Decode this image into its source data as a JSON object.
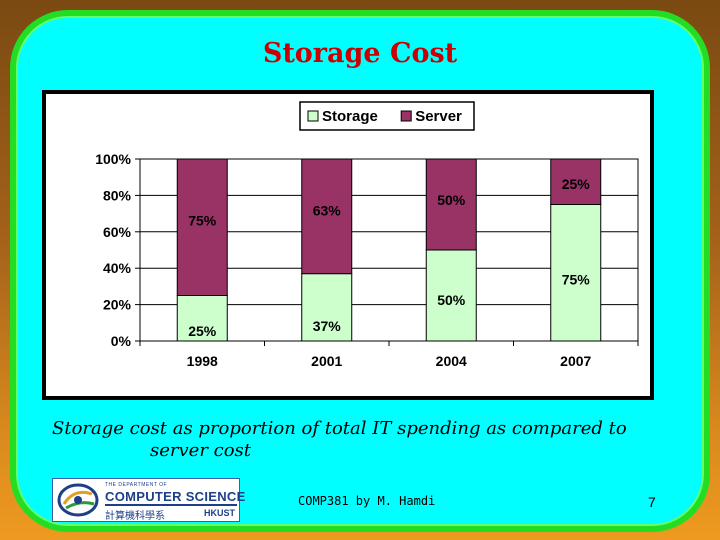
{
  "slide": {
    "title": "Storage Cost",
    "caption_line1": "Storage cost as proportion of total IT spending as compared to",
    "caption_line2": "server cost",
    "footer": "COMP381 by M. Hamdi",
    "page_number": "7"
  },
  "logo": {
    "small_text": "THE DEPARTMENT OF",
    "main_text": "COMPUTER SCIENCE",
    "chinese_text": "計算機科學系",
    "org_text": "HKUST"
  },
  "colors": {
    "storage": "#ccffcc",
    "server": "#993366",
    "title": "#cc0000",
    "background": "#00ffff"
  },
  "chart_data": {
    "type": "bar",
    "stacked": true,
    "categories": [
      "1998",
      "2001",
      "2004",
      "2007"
    ],
    "series": [
      {
        "name": "Storage",
        "values": [
          25,
          37,
          50,
          75
        ],
        "labels": [
          "25%",
          "37%",
          "50%",
          "75%"
        ],
        "color": "#ccffcc"
      },
      {
        "name": "Server",
        "values": [
          75,
          63,
          50,
          25
        ],
        "labels": [
          "75%",
          "63%",
          "50%",
          "25%"
        ],
        "color": "#993366"
      }
    ],
    "y_ticks": [
      "0%",
      "20%",
      "40%",
      "60%",
      "80%",
      "100%"
    ],
    "ylim": [
      0,
      100
    ],
    "grid": true,
    "legend": "top-center"
  }
}
